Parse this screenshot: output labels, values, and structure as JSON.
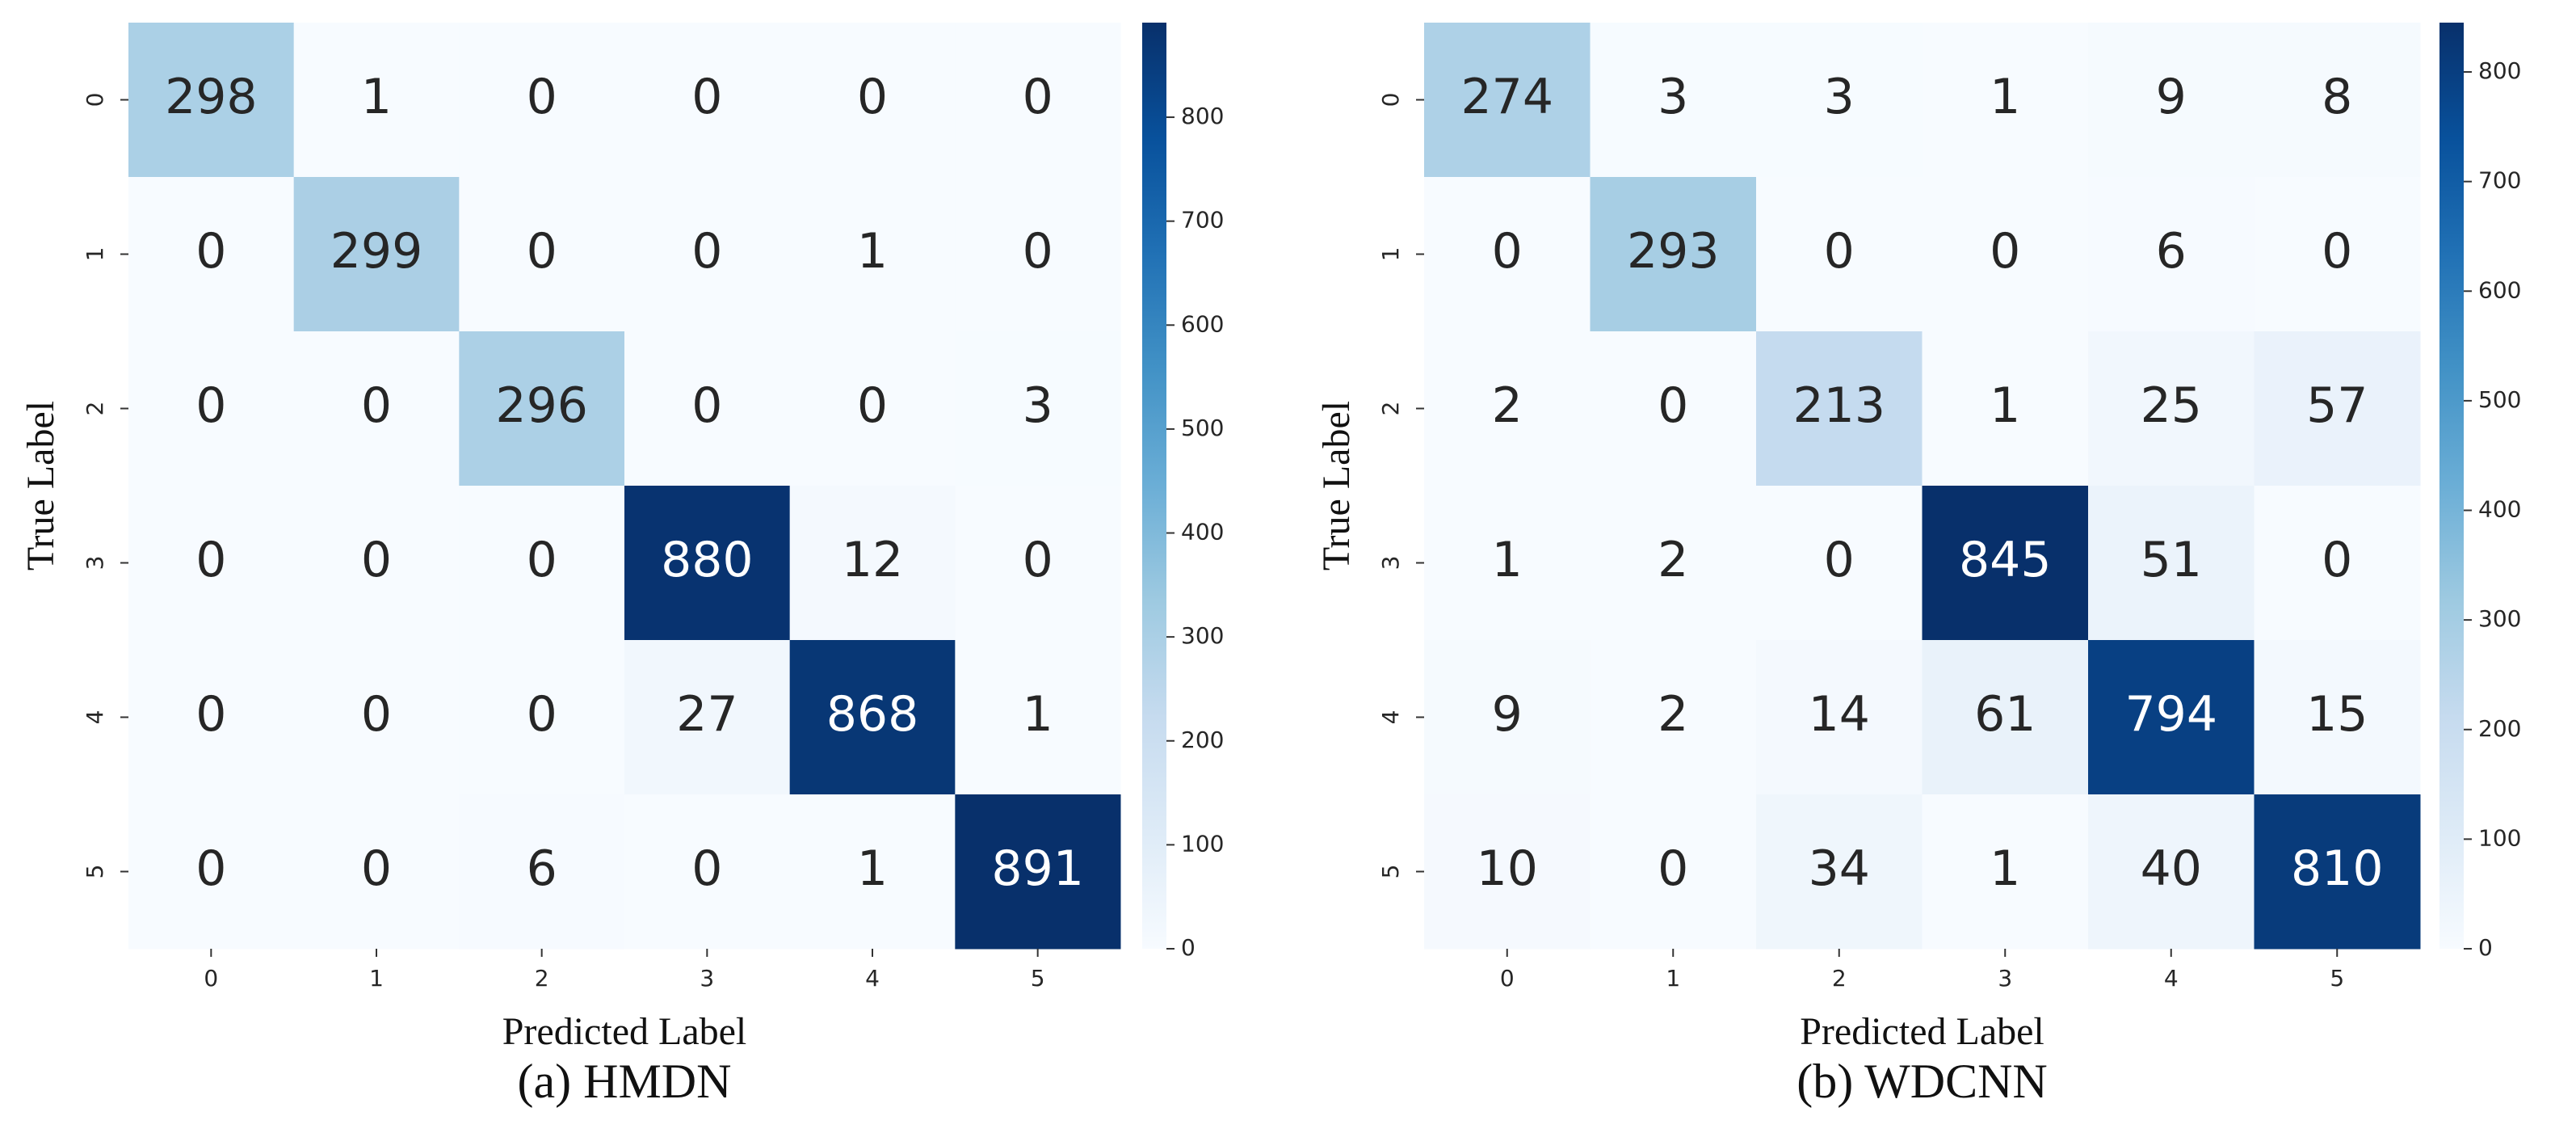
{
  "chart_data": [
    {
      "type": "heatmap",
      "title": "(a) HMDN",
      "xlabel": "Predicted Label",
      "ylabel": "True Label",
      "categories": [
        "0",
        "1",
        "2",
        "3",
        "4",
        "5"
      ],
      "y_categories": [
        "0",
        "1",
        "2",
        "3",
        "4",
        "5"
      ],
      "values": [
        [
          298,
          1,
          0,
          0,
          0,
          0
        ],
        [
          0,
          299,
          0,
          0,
          1,
          0
        ],
        [
          0,
          0,
          296,
          0,
          0,
          3
        ],
        [
          0,
          0,
          0,
          880,
          12,
          0
        ],
        [
          0,
          0,
          0,
          27,
          868,
          1
        ],
        [
          0,
          0,
          6,
          0,
          1,
          891
        ]
      ],
      "colormap": "Blues",
      "clim": [
        0,
        891
      ],
      "cticks": [
        0,
        100,
        200,
        300,
        400,
        500,
        600,
        700,
        800
      ]
    },
    {
      "type": "heatmap",
      "title": "(b) WDCNN",
      "xlabel": "Predicted Label",
      "ylabel": "True Label",
      "categories": [
        "0",
        "1",
        "2",
        "3",
        "4",
        "5"
      ],
      "y_categories": [
        "0",
        "1",
        "2",
        "3",
        "4",
        "5"
      ],
      "values": [
        [
          274,
          3,
          3,
          1,
          9,
          8
        ],
        [
          0,
          293,
          0,
          0,
          6,
          0
        ],
        [
          2,
          0,
          213,
          1,
          25,
          57
        ],
        [
          1,
          2,
          0,
          845,
          51,
          0
        ],
        [
          9,
          2,
          14,
          61,
          794,
          15
        ],
        [
          10,
          0,
          34,
          1,
          40,
          810
        ]
      ],
      "colormap": "Blues",
      "clim": [
        0,
        845
      ],
      "cticks": [
        0,
        100,
        200,
        300,
        400,
        500,
        600,
        700,
        800
      ]
    }
  ]
}
